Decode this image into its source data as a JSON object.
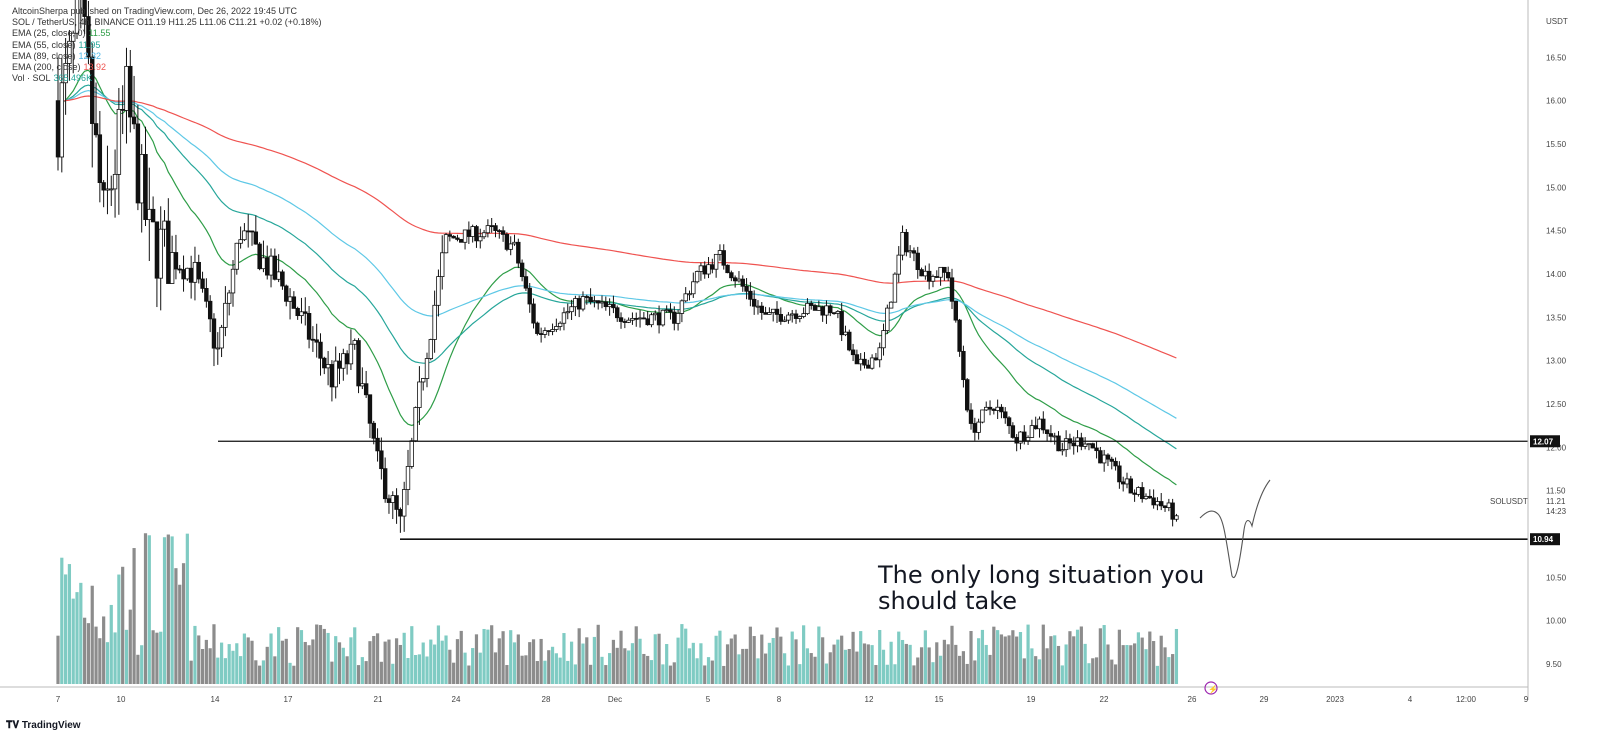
{
  "header": {
    "publisher": "AltcoinSherpa published on TradingView.com, Dec 26, 2022 19:45 UTC",
    "symbol_line": "SOL / TetherUS, 4h, BINANCE  O11.19 H11.25 L11.06 C11.21 +0.02 (+0.18%)"
  },
  "indicators": [
    {
      "label": "EMA (25, close, 0)",
      "value": "11.55",
      "color": "#2e9d47"
    },
    {
      "label": "EMA (55, close)",
      "value": "11.95",
      "color": "#26a69a"
    },
    {
      "label": "EMA (89, close)",
      "value": "12.32",
      "color": "#5ec8e6"
    },
    {
      "label": "EMA (200, close)",
      "value": "13.92",
      "color": "#ef5350"
    },
    {
      "label": "Vol · SOL",
      "value": "365.496K",
      "color": "#26a69a"
    }
  ],
  "annotation": "The only long situation you should take",
  "footer": {
    "logo": "TradingView"
  },
  "right_axis": {
    "currency": "USDT",
    "symbol_label": "SOLUSDT",
    "last_price": "11.21",
    "countdown": "14:23",
    "level_high": "12.07",
    "level_low": "10.94",
    "ticks": [
      "16.50",
      "16.00",
      "15.50",
      "15.00",
      "14.50",
      "14.00",
      "13.50",
      "13.00",
      "12.50",
      "12.00",
      "11.50",
      "10.50",
      "10.00",
      "9.50"
    ]
  },
  "time_axis": {
    "labels": [
      "7",
      "10",
      "14",
      "17",
      "21",
      "24",
      "28",
      "Dec",
      "5",
      "8",
      "12",
      "15",
      "19",
      "22",
      "26",
      "29",
      "2023",
      "4",
      "12:00",
      "9"
    ]
  },
  "chart_data": {
    "type": "candlestick",
    "interval": "4h",
    "ylim": [
      9.2,
      17.0
    ],
    "horizontal_levels": [
      12.07,
      10.94
    ],
    "ema_last": {
      "ema25": 11.55,
      "ema55": 11.95,
      "ema89": 12.32,
      "ema200": 13.92
    },
    "anchors": [
      {
        "date": "Nov 7",
        "close": 15.8
      },
      {
        "date": "Nov 8",
        "close": 17.0
      },
      {
        "date": "Nov 9",
        "close": 14.6
      },
      {
        "date": "Nov 10",
        "close": 16.0
      },
      {
        "date": "Nov 11",
        "close": 14.4
      },
      {
        "date": "Nov 13",
        "close": 14.0
      },
      {
        "date": "Nov 14",
        "close": 13.1
      },
      {
        "date": "Nov 15",
        "close": 14.5
      },
      {
        "date": "Nov 17",
        "close": 13.8
      },
      {
        "date": "Nov 19",
        "close": 12.8
      },
      {
        "date": "Nov 20",
        "close": 13.1
      },
      {
        "date": "Nov 21",
        "close": 11.8
      },
      {
        "date": "Nov 22",
        "close": 11.1
      },
      {
        "date": "Nov 23",
        "close": 12.9
      },
      {
        "date": "Nov 24",
        "close": 14.4
      },
      {
        "date": "Nov 26",
        "close": 14.5
      },
      {
        "date": "Nov 27",
        "close": 14.3
      },
      {
        "date": "Nov 28",
        "close": 13.3
      },
      {
        "date": "Nov 30",
        "close": 13.7
      },
      {
        "date": "Dec 2",
        "close": 13.5
      },
      {
        "date": "Dec 4",
        "close": 13.5
      },
      {
        "date": "Dec 5",
        "close": 14.0
      },
      {
        "date": "Dec 6",
        "close": 14.2
      },
      {
        "date": "Dec 8",
        "close": 13.5
      },
      {
        "date": "Dec 10",
        "close": 13.6
      },
      {
        "date": "Dec 11",
        "close": 13.6
      },
      {
        "date": "Dec 12",
        "close": 12.9
      },
      {
        "date": "Dec 13",
        "close": 13.1
      },
      {
        "date": "Dec 14",
        "close": 14.4
      },
      {
        "date": "Dec 15",
        "close": 14.0
      },
      {
        "date": "Dec 16",
        "close": 14.0
      },
      {
        "date": "Dec 17",
        "close": 12.2
      },
      {
        "date": "Dec 18",
        "close": 12.5
      },
      {
        "date": "Dec 19",
        "close": 12.1
      },
      {
        "date": "Dec 20",
        "close": 12.3
      },
      {
        "date": "Dec 21",
        "close": 12.0
      },
      {
        "date": "Dec 22",
        "close": 12.1
      },
      {
        "date": "Dec 23",
        "close": 11.8
      },
      {
        "date": "Dec 24",
        "close": 11.5
      },
      {
        "date": "Dec 25",
        "close": 11.4
      },
      {
        "date": "Dec 26",
        "close": 11.21
      }
    ]
  }
}
